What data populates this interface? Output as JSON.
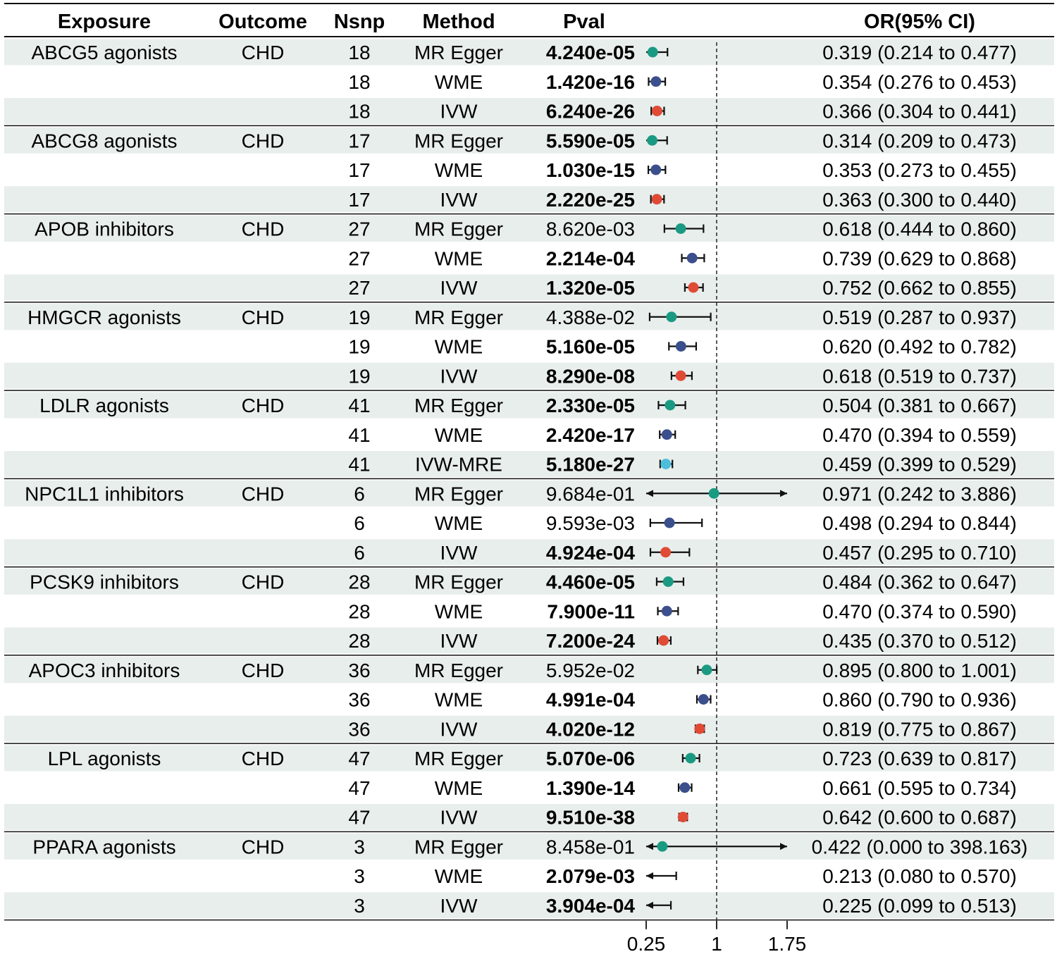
{
  "chart_data": {
    "type": "forest",
    "columns": [
      "Exposure",
      "Outcome",
      "Nsnp",
      "Method",
      "Pval",
      "OR(95% CI)"
    ],
    "xaxis": {
      "ticks": [
        0.25,
        1,
        1.75
      ],
      "tick_labels": [
        "0.25",
        "1",
        "1.75"
      ],
      "reference_line": 1,
      "xlim": [
        0.25,
        1.75
      ]
    },
    "method_colors": {
      "MR Egger": "#1a9a82",
      "WME": "#3b4f8c",
      "IVW": "#e04b35",
      "IVW-MRE": "#4cbedb"
    },
    "band_color": "#e8eeec",
    "groups": [
      {
        "exposure": "ABCG5 agonists",
        "outcome": "CHD",
        "rows": [
          {
            "nsnp": "18",
            "method": "MR Egger",
            "pval": "4.240e-05",
            "bold": true,
            "or": 0.319,
            "lo": 0.214,
            "hi": 0.477,
            "ci_text": "0.319 (0.214 to 0.477)"
          },
          {
            "nsnp": "18",
            "method": "WME",
            "pval": "1.420e-16",
            "bold": true,
            "or": 0.354,
            "lo": 0.276,
            "hi": 0.453,
            "ci_text": "0.354 (0.276 to 0.453)"
          },
          {
            "nsnp": "18",
            "method": "IVW",
            "pval": "6.240e-26",
            "bold": true,
            "or": 0.366,
            "lo": 0.304,
            "hi": 0.441,
            "ci_text": "0.366 (0.304 to 0.441)"
          }
        ]
      },
      {
        "exposure": "ABCG8 agonists",
        "outcome": "CHD",
        "rows": [
          {
            "nsnp": "17",
            "method": "MR Egger",
            "pval": "5.590e-05",
            "bold": true,
            "or": 0.314,
            "lo": 0.209,
            "hi": 0.473,
            "ci_text": "0.314 (0.209 to 0.473)"
          },
          {
            "nsnp": "17",
            "method": "WME",
            "pval": "1.030e-15",
            "bold": true,
            "or": 0.353,
            "lo": 0.273,
            "hi": 0.455,
            "ci_text": "0.353 (0.273 to 0.455)"
          },
          {
            "nsnp": "17",
            "method": "IVW",
            "pval": "2.220e-25",
            "bold": true,
            "or": 0.363,
            "lo": 0.3,
            "hi": 0.44,
            "ci_text": "0.363 (0.300 to 0.440)"
          }
        ]
      },
      {
        "exposure": "APOB inhibitors",
        "outcome": "CHD",
        "rows": [
          {
            "nsnp": "27",
            "method": "MR Egger",
            "pval": "8.620e-03",
            "bold": false,
            "or": 0.618,
            "lo": 0.444,
            "hi": 0.86,
            "ci_text": "0.618 (0.444 to 0.860)"
          },
          {
            "nsnp": "27",
            "method": "WME",
            "pval": "2.214e-04",
            "bold": true,
            "or": 0.739,
            "lo": 0.629,
            "hi": 0.868,
            "ci_text": "0.739 (0.629 to 0.868)"
          },
          {
            "nsnp": "27",
            "method": "IVW",
            "pval": "1.320e-05",
            "bold": true,
            "or": 0.752,
            "lo": 0.662,
            "hi": 0.855,
            "ci_text": "0.752 (0.662 to 0.855)"
          }
        ]
      },
      {
        "exposure": "HMGCR agonists",
        "outcome": "CHD",
        "rows": [
          {
            "nsnp": "19",
            "method": "MR Egger",
            "pval": "4.388e-02",
            "bold": false,
            "or": 0.519,
            "lo": 0.287,
            "hi": 0.937,
            "ci_text": "0.519 (0.287 to 0.937)"
          },
          {
            "nsnp": "19",
            "method": "WME",
            "pval": "5.160e-05",
            "bold": true,
            "or": 0.62,
            "lo": 0.492,
            "hi": 0.782,
            "ci_text": "0.620 (0.492 to 0.782)"
          },
          {
            "nsnp": "19",
            "method": "IVW",
            "pval": "8.290e-08",
            "bold": true,
            "or": 0.618,
            "lo": 0.519,
            "hi": 0.737,
            "ci_text": "0.618 (0.519 to 0.737)"
          }
        ]
      },
      {
        "exposure": "LDLR agonists",
        "outcome": "CHD",
        "rows": [
          {
            "nsnp": "41",
            "method": "MR Egger",
            "pval": "2.330e-05",
            "bold": true,
            "or": 0.504,
            "lo": 0.381,
            "hi": 0.667,
            "ci_text": "0.504 (0.381 to 0.667)"
          },
          {
            "nsnp": "41",
            "method": "WME",
            "pval": "2.420e-17",
            "bold": true,
            "or": 0.47,
            "lo": 0.394,
            "hi": 0.559,
            "ci_text": "0.470 (0.394 to 0.559)"
          },
          {
            "nsnp": "41",
            "method": "IVW-MRE",
            "pval": "5.180e-27",
            "bold": true,
            "or": 0.459,
            "lo": 0.399,
            "hi": 0.529,
            "ci_text": "0.459 (0.399 to 0.529)"
          }
        ]
      },
      {
        "exposure": "NPC1L1 inhibitors",
        "outcome": "CHD",
        "rows": [
          {
            "nsnp": "6",
            "method": "MR Egger",
            "pval": "9.684e-01",
            "bold": false,
            "or": 0.971,
            "lo": 0.242,
            "hi": 3.886,
            "ci_text": "0.971 (0.242 to 3.886)"
          },
          {
            "nsnp": "6",
            "method": "WME",
            "pval": "9.593e-03",
            "bold": false,
            "or": 0.498,
            "lo": 0.294,
            "hi": 0.844,
            "ci_text": "0.498 (0.294 to 0.844)"
          },
          {
            "nsnp": "6",
            "method": "IVW",
            "pval": "4.924e-04",
            "bold": true,
            "or": 0.457,
            "lo": 0.295,
            "hi": 0.71,
            "ci_text": "0.457 (0.295 to 0.710)"
          }
        ]
      },
      {
        "exposure": "PCSK9 inhibitors",
        "outcome": "CHD",
        "rows": [
          {
            "nsnp": "28",
            "method": "MR Egger",
            "pval": "4.460e-05",
            "bold": true,
            "or": 0.484,
            "lo": 0.362,
            "hi": 0.647,
            "ci_text": "0.484 (0.362 to 0.647)"
          },
          {
            "nsnp": "28",
            "method": "WME",
            "pval": "7.900e-11",
            "bold": true,
            "or": 0.47,
            "lo": 0.374,
            "hi": 0.59,
            "ci_text": "0.470 (0.374 to 0.590)"
          },
          {
            "nsnp": "28",
            "method": "IVW",
            "pval": "7.200e-24",
            "bold": true,
            "or": 0.435,
            "lo": 0.37,
            "hi": 0.512,
            "ci_text": "0.435 (0.370 to 0.512)"
          }
        ]
      },
      {
        "exposure": "APOC3 inhibitors",
        "outcome": "CHD",
        "rows": [
          {
            "nsnp": "36",
            "method": "MR Egger",
            "pval": "5.952e-02",
            "bold": false,
            "or": 0.895,
            "lo": 0.8,
            "hi": 1.001,
            "ci_text": "0.895 (0.800 to 1.001)"
          },
          {
            "nsnp": "36",
            "method": "WME",
            "pval": "4.991e-04",
            "bold": true,
            "or": 0.86,
            "lo": 0.79,
            "hi": 0.936,
            "ci_text": "0.860 (0.790 to 0.936)"
          },
          {
            "nsnp": "36",
            "method": "IVW",
            "pval": "4.020e-12",
            "bold": true,
            "or": 0.819,
            "lo": 0.775,
            "hi": 0.867,
            "ci_text": "0.819 (0.775 to 0.867)"
          }
        ]
      },
      {
        "exposure": "LPL agonists",
        "outcome": "CHD",
        "rows": [
          {
            "nsnp": "47",
            "method": "MR Egger",
            "pval": "5.070e-06",
            "bold": true,
            "or": 0.723,
            "lo": 0.639,
            "hi": 0.817,
            "ci_text": "0.723 (0.639 to 0.817)"
          },
          {
            "nsnp": "47",
            "method": "WME",
            "pval": "1.390e-14",
            "bold": true,
            "or": 0.661,
            "lo": 0.595,
            "hi": 0.734,
            "ci_text": "0.661 (0.595 to 0.734)"
          },
          {
            "nsnp": "47",
            "method": "IVW",
            "pval": "9.510e-38",
            "bold": true,
            "or": 0.642,
            "lo": 0.6,
            "hi": 0.687,
            "ci_text": "0.642 (0.600 to 0.687)"
          }
        ]
      },
      {
        "exposure": "PPARA agonists",
        "outcome": "CHD",
        "rows": [
          {
            "nsnp": "3",
            "method": "MR Egger",
            "pval": "8.458e-01",
            "bold": false,
            "or": 0.422,
            "lo": 0.0,
            "hi": 398.163,
            "ci_text": "0.422 (0.000 to 398.163)"
          },
          {
            "nsnp": "3",
            "method": "WME",
            "pval": "2.079e-03",
            "bold": true,
            "or": 0.213,
            "lo": 0.08,
            "hi": 0.57,
            "ci_text": "0.213 (0.080 to 0.570)"
          },
          {
            "nsnp": "3",
            "method": "IVW",
            "pval": "3.904e-04",
            "bold": true,
            "or": 0.225,
            "lo": 0.099,
            "hi": 0.513,
            "ci_text": "0.225 (0.099 to 0.513)"
          }
        ]
      }
    ]
  }
}
